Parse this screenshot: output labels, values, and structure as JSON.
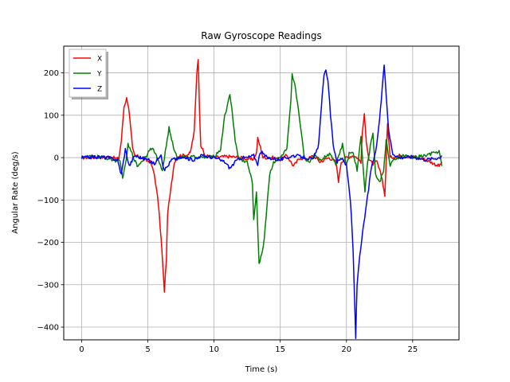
{
  "chart_data": {
    "type": "line",
    "title": "Raw Gyroscope Readings",
    "xlabel": "Time (s)",
    "ylabel": "Angular Rate (deg/s)",
    "xlim": [
      -1.35,
      28.5
    ],
    "ylim": [
      -430,
      263
    ],
    "xticks": [
      0,
      5,
      10,
      15,
      20,
      25
    ],
    "yticks": [
      -400,
      -300,
      -200,
      -100,
      0,
      100,
      200
    ],
    "grid": true,
    "legend": "top-left",
    "series": [
      {
        "name": "X",
        "color": "#ff0000",
        "points": [
          [
            0,
            0
          ],
          [
            1,
            0
          ],
          [
            2,
            2
          ],
          [
            2.8,
            -3
          ],
          [
            3.0,
            40
          ],
          [
            3.2,
            120
          ],
          [
            3.4,
            140
          ],
          [
            3.55,
            120
          ],
          [
            3.7,
            70
          ],
          [
            3.85,
            20
          ],
          [
            4.0,
            5
          ],
          [
            4.3,
            2
          ],
          [
            4.7,
            -5
          ],
          [
            5.2,
            -10
          ],
          [
            5.5,
            -40
          ],
          [
            5.8,
            -110
          ],
          [
            6.0,
            -190
          ],
          [
            6.1,
            -240
          ],
          [
            6.25,
            -315
          ],
          [
            6.4,
            -240
          ],
          [
            6.5,
            -130
          ],
          [
            6.8,
            -60
          ],
          [
            7.0,
            -10
          ],
          [
            7.4,
            5
          ],
          [
            7.8,
            5
          ],
          [
            8.2,
            10
          ],
          [
            8.5,
            60
          ],
          [
            8.7,
            200
          ],
          [
            8.8,
            235
          ],
          [
            8.9,
            120
          ],
          [
            9.0,
            30
          ],
          [
            9.3,
            5
          ],
          [
            10.0,
            0
          ],
          [
            11,
            3
          ],
          [
            12,
            0
          ],
          [
            12.9,
            -5
          ],
          [
            13.2,
            10
          ],
          [
            13.3,
            45
          ],
          [
            13.5,
            25
          ],
          [
            13.7,
            0
          ],
          [
            14.5,
            0
          ],
          [
            15,
            -5
          ],
          [
            15.5,
            5
          ],
          [
            16,
            -20
          ],
          [
            16.5,
            0
          ],
          [
            17,
            -5
          ],
          [
            17.5,
            5
          ],
          [
            18,
            -10
          ],
          [
            18.7,
            0
          ],
          [
            19.2,
            -10
          ],
          [
            19.4,
            -55
          ],
          [
            19.6,
            -10
          ],
          [
            20,
            0
          ],
          [
            20.5,
            5
          ],
          [
            20.8,
            0
          ],
          [
            21.1,
            -10
          ],
          [
            21.2,
            60
          ],
          [
            21.35,
            100
          ],
          [
            21.5,
            40
          ],
          [
            21.7,
            -5
          ],
          [
            22.0,
            -15
          ],
          [
            22.3,
            -10
          ],
          [
            22.7,
            -50
          ],
          [
            22.9,
            -90
          ],
          [
            23.1,
            80
          ],
          [
            23.3,
            0
          ],
          [
            24,
            5
          ],
          [
            25,
            2
          ],
          [
            26,
            -5
          ],
          [
            27,
            -20
          ],
          [
            27.2,
            -10
          ]
        ]
      },
      {
        "name": "Y",
        "color": "#008000",
        "points": [
          [
            0,
            0
          ],
          [
            1,
            3
          ],
          [
            2,
            -2
          ],
          [
            2.9,
            -10
          ],
          [
            3.1,
            -45
          ],
          [
            3.3,
            -20
          ],
          [
            3.5,
            30
          ],
          [
            3.8,
            10
          ],
          [
            4.2,
            -20
          ],
          [
            4.5,
            -10
          ],
          [
            4.9,
            5
          ],
          [
            5.2,
            25
          ],
          [
            5.5,
            15
          ],
          [
            5.8,
            -10
          ],
          [
            6.1,
            -30
          ],
          [
            6.4,
            30
          ],
          [
            6.6,
            70
          ],
          [
            6.8,
            40
          ],
          [
            7.2,
            0
          ],
          [
            8,
            2
          ],
          [
            9,
            0
          ],
          [
            10,
            2
          ],
          [
            10.5,
            20
          ],
          [
            10.8,
            100
          ],
          [
            11.0,
            120
          ],
          [
            11.2,
            150
          ],
          [
            11.4,
            100
          ],
          [
            11.6,
            40
          ],
          [
            11.8,
            5
          ],
          [
            12,
            -5
          ],
          [
            12.5,
            -10
          ],
          [
            12.9,
            -60
          ],
          [
            13.0,
            -150
          ],
          [
            13.2,
            -80
          ],
          [
            13.4,
            -250
          ],
          [
            13.6,
            -230
          ],
          [
            13.8,
            -190
          ],
          [
            14.0,
            -110
          ],
          [
            14.2,
            -40
          ],
          [
            14.5,
            -10
          ],
          [
            15,
            0
          ],
          [
            15.5,
            20
          ],
          [
            15.8,
            130
          ],
          [
            15.9,
            195
          ],
          [
            16.1,
            170
          ],
          [
            16.3,
            130
          ],
          [
            16.6,
            60
          ],
          [
            16.8,
            0
          ],
          [
            17.2,
            -10
          ],
          [
            17.6,
            10
          ],
          [
            18,
            -5
          ],
          [
            18.8,
            10
          ],
          [
            19.2,
            -15
          ],
          [
            19.7,
            30
          ],
          [
            20,
            -20
          ],
          [
            20.2,
            10
          ],
          [
            20.5,
            15
          ],
          [
            20.8,
            -30
          ],
          [
            21.1,
            50
          ],
          [
            21.4,
            -80
          ],
          [
            21.6,
            -10
          ],
          [
            22.0,
            60
          ],
          [
            22.2,
            -40
          ],
          [
            22.5,
            -60
          ],
          [
            22.8,
            -30
          ],
          [
            23.0,
            40
          ],
          [
            23.3,
            -20
          ],
          [
            23.6,
            -5
          ],
          [
            24.2,
            5
          ],
          [
            25,
            0
          ],
          [
            26,
            5
          ],
          [
            27,
            15
          ],
          [
            27.2,
            -20
          ]
        ]
      },
      {
        "name": "Z",
        "color": "#0000ff",
        "points": [
          [
            0,
            0
          ],
          [
            1,
            2
          ],
          [
            2,
            0
          ],
          [
            2.7,
            -5
          ],
          [
            3.0,
            -40
          ],
          [
            3.3,
            20
          ],
          [
            3.6,
            -20
          ],
          [
            4.0,
            5
          ],
          [
            5,
            -5
          ],
          [
            5.5,
            -15
          ],
          [
            6.0,
            10
          ],
          [
            6.2,
            -30
          ],
          [
            6.5,
            -20
          ],
          [
            6.8,
            -5
          ],
          [
            7.5,
            0
          ],
          [
            8.5,
            -5
          ],
          [
            9,
            5
          ],
          [
            10,
            0
          ],
          [
            10.8,
            -10
          ],
          [
            11.2,
            -25
          ],
          [
            11.6,
            -10
          ],
          [
            12,
            0
          ],
          [
            12.5,
            0
          ],
          [
            13,
            5
          ],
          [
            13.3,
            -15
          ],
          [
            13.5,
            15
          ],
          [
            14,
            0
          ],
          [
            15,
            -5
          ],
          [
            16,
            5
          ],
          [
            17,
            0
          ],
          [
            17.5,
            -5
          ],
          [
            17.9,
            30
          ],
          [
            18.1,
            120
          ],
          [
            18.3,
            190
          ],
          [
            18.45,
            210
          ],
          [
            18.6,
            180
          ],
          [
            18.8,
            100
          ],
          [
            19.0,
            30
          ],
          [
            19.3,
            -10
          ],
          [
            19.7,
            0
          ],
          [
            20.0,
            -20
          ],
          [
            20.3,
            -100
          ],
          [
            20.5,
            -220
          ],
          [
            20.7,
            -425
          ],
          [
            20.8,
            -300
          ],
          [
            21.0,
            -230
          ],
          [
            21.3,
            -160
          ],
          [
            21.6,
            -90
          ],
          [
            21.9,
            -20
          ],
          [
            22.2,
            10
          ],
          [
            22.5,
            90
          ],
          [
            22.7,
            160
          ],
          [
            22.85,
            220
          ],
          [
            23.0,
            150
          ],
          [
            23.2,
            60
          ],
          [
            23.5,
            10
          ],
          [
            24,
            0
          ],
          [
            25,
            2
          ],
          [
            26,
            -5
          ],
          [
            27,
            0
          ],
          [
            27.2,
            5
          ]
        ]
      }
    ]
  }
}
